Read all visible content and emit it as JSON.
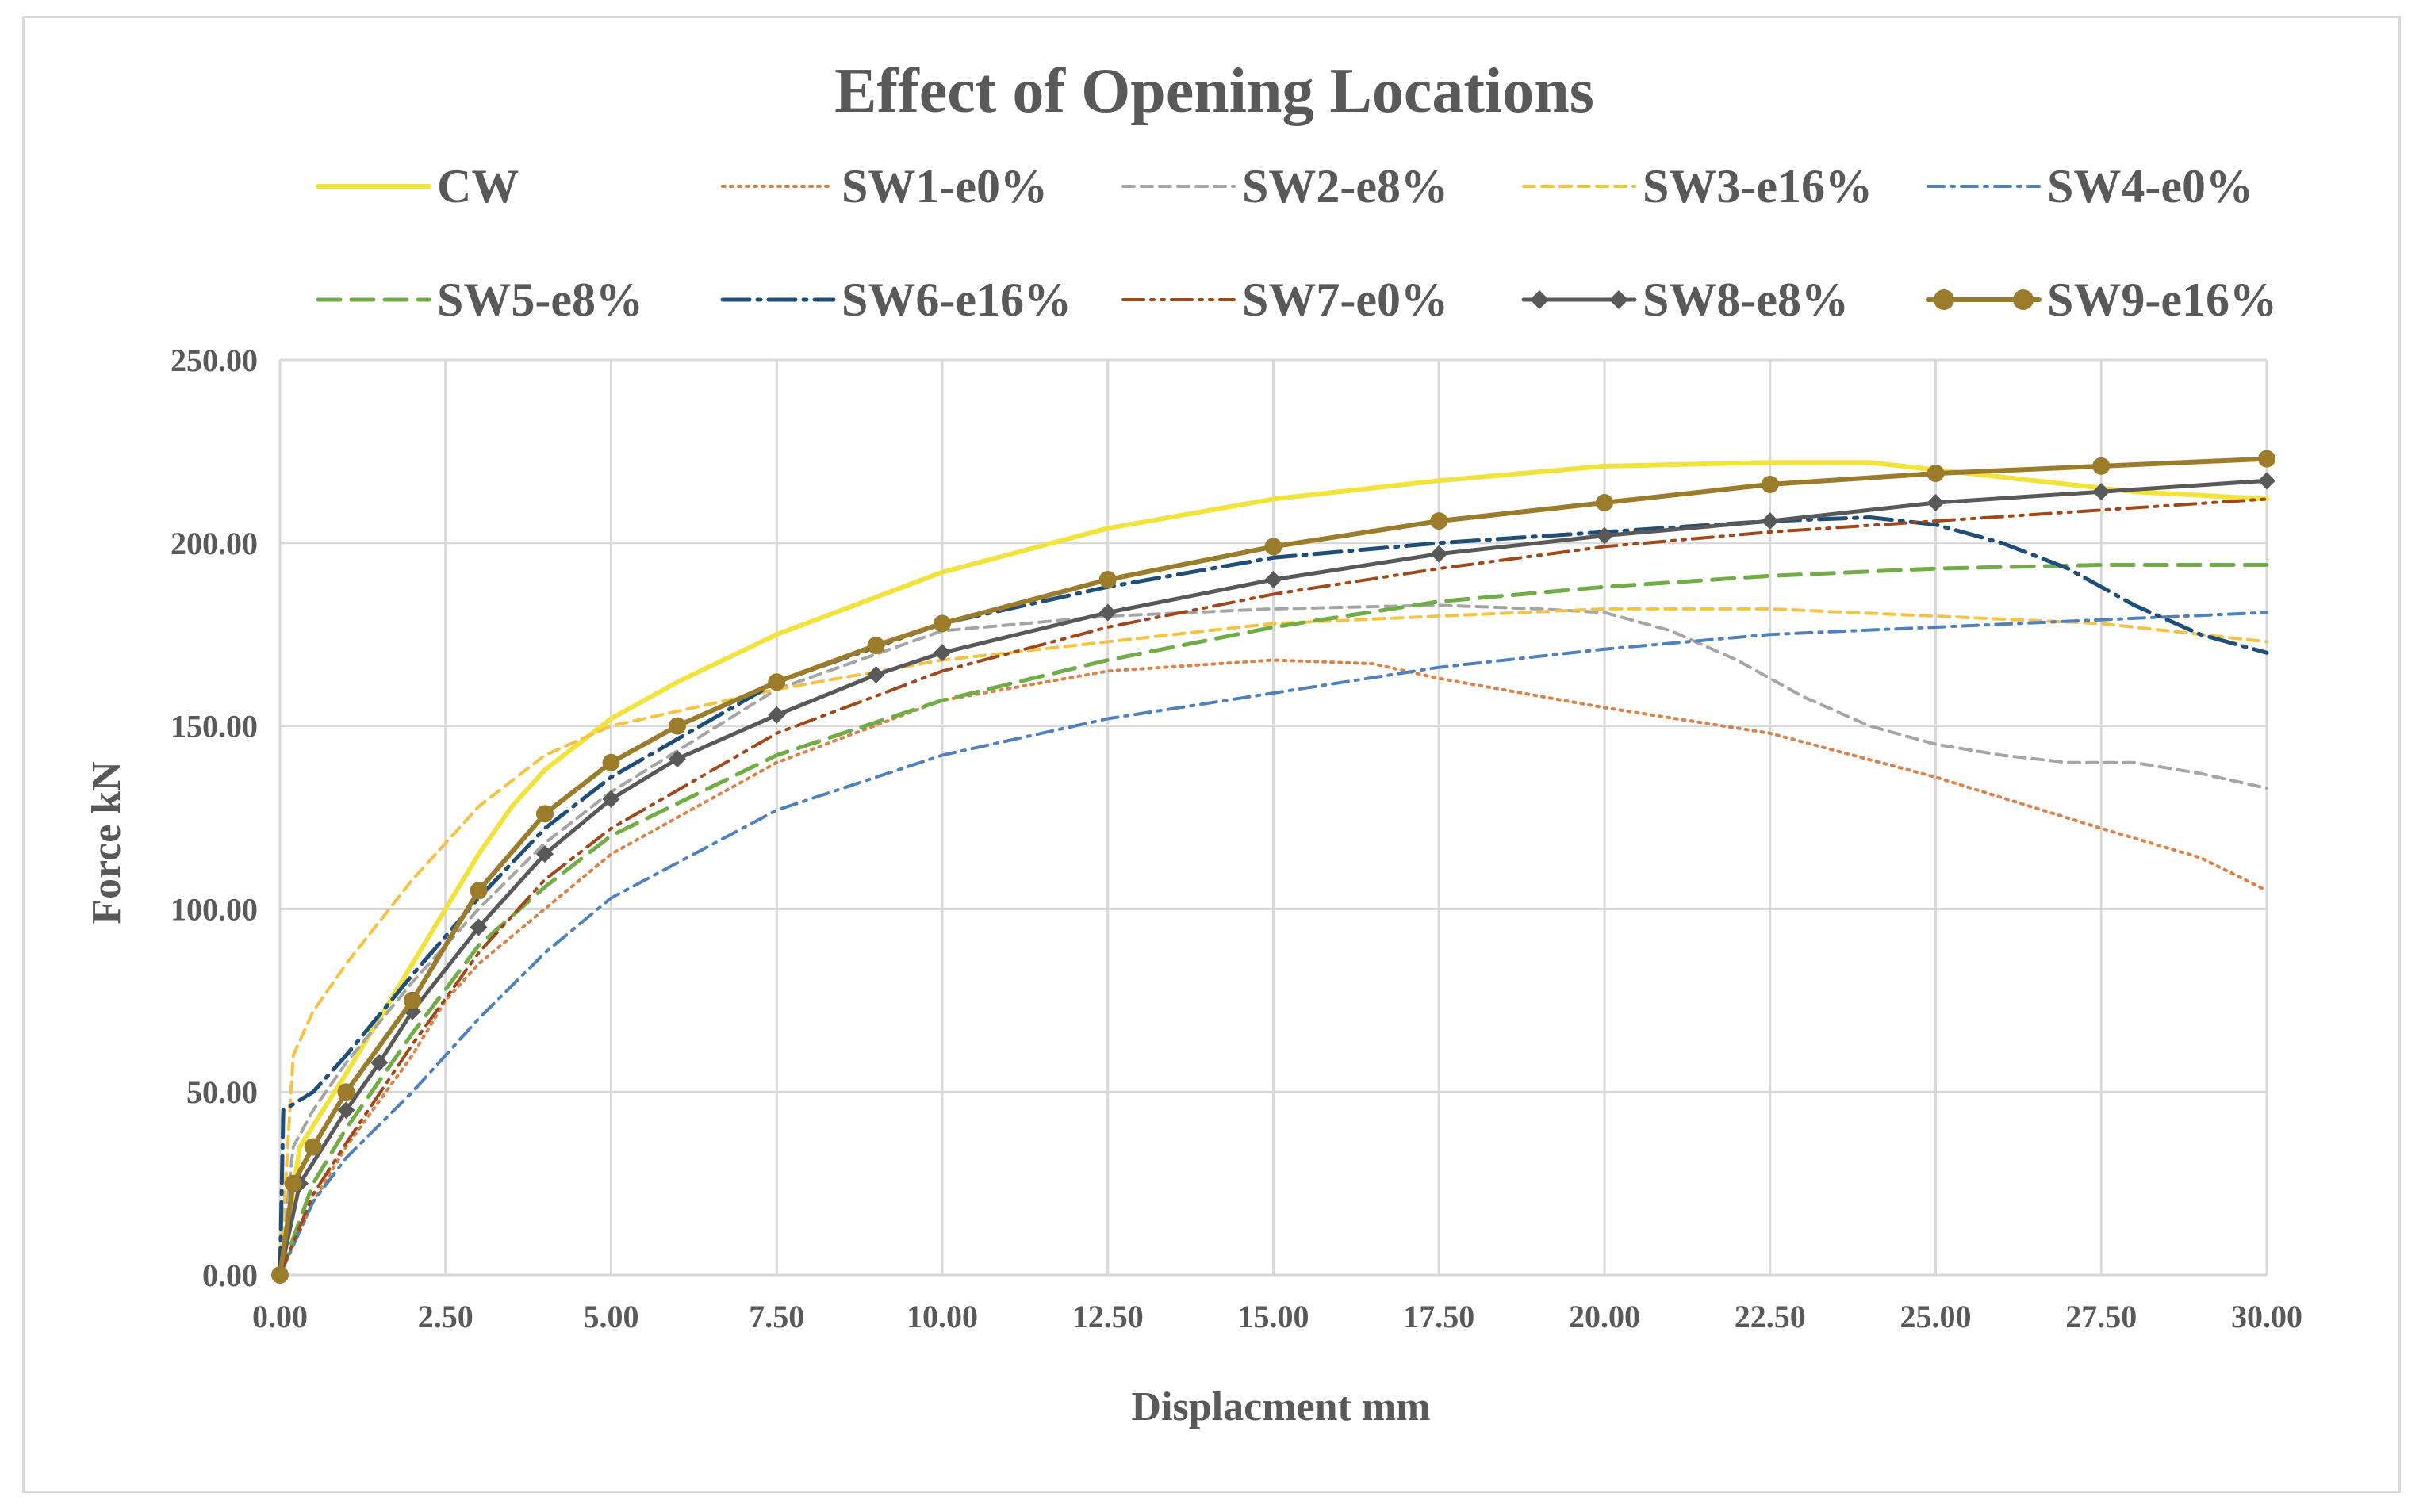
{
  "chart_data": {
    "type": "line",
    "title": "Effect of Opening Locations",
    "xlabel": "Displacment  mm",
    "ylabel": "Force  kN",
    "xlim": [
      0,
      30
    ],
    "ylim": [
      0,
      250
    ],
    "x_ticks": [
      "0.00",
      "2.50",
      "5.00",
      "7.50",
      "10.00",
      "12.50",
      "15.00",
      "17.50",
      "20.00",
      "22.50",
      "25.00",
      "27.50",
      "30.00"
    ],
    "y_ticks": [
      "0.00",
      "50.00",
      "100.00",
      "150.00",
      "200.00",
      "250.00"
    ],
    "grid": true,
    "legend_position": "top",
    "series": [
      {
        "name": "CW",
        "color": "#f2e33c",
        "style": "solid",
        "x": [
          0,
          0.3,
          1,
          1.5,
          2,
          2.5,
          3,
          3.5,
          4,
          5,
          6,
          7.5,
          10,
          12.5,
          15,
          17.5,
          20,
          22.5,
          24,
          25,
          26,
          27,
          28,
          29,
          30
        ],
        "y": [
          0,
          35,
          55,
          70,
          85,
          100,
          115,
          128,
          138,
          152,
          162,
          175,
          192,
          204,
          212,
          217,
          221,
          222,
          222,
          220,
          218,
          216,
          214,
          213,
          212
        ]
      },
      {
        "name": "SW1-e0%",
        "color": "#d9824a",
        "style": "dotted",
        "x": [
          0,
          0.5,
          1,
          2,
          2.5,
          3,
          4,
          5,
          7.5,
          10,
          12.5,
          15,
          16.5,
          17.5,
          20,
          22.5,
          25,
          27.5,
          29,
          30
        ],
        "y": [
          0,
          20,
          35,
          60,
          75,
          85,
          100,
          115,
          140,
          157,
          165,
          168,
          167,
          163,
          155,
          148,
          136,
          122,
          114,
          105
        ]
      },
      {
        "name": "SW2-e8%",
        "color": "#a5a5a5",
        "style": "dashed",
        "x": [
          0,
          0.2,
          0.5,
          1,
          2,
          3,
          4,
          5,
          7.5,
          10,
          12.5,
          15,
          17.5,
          19,
          20,
          21,
          22,
          23,
          24,
          25,
          26,
          27,
          28,
          29,
          30
        ],
        "y": [
          0,
          35,
          45,
          58,
          80,
          100,
          118,
          132,
          160,
          176,
          180,
          182,
          183,
          182,
          181,
          176,
          168,
          158,
          150,
          145,
          142,
          140,
          140,
          137,
          133
        ]
      },
      {
        "name": "SW3-e16%",
        "color": "#f6c244",
        "style": "dashed",
        "x": [
          0,
          0.2,
          0.5,
          1,
          2,
          3,
          4,
          5,
          6,
          7.5,
          10,
          12.5,
          15,
          17.5,
          20,
          22.5,
          25,
          27.5,
          29,
          30
        ],
        "y": [
          0,
          60,
          72,
          85,
          108,
          128,
          142,
          150,
          154,
          160,
          168,
          173,
          178,
          180,
          182,
          182,
          180,
          178,
          175,
          173
        ]
      },
      {
        "name": "SW4-e0%",
        "color": "#4f81bd",
        "style": "dashdot",
        "x": [
          0,
          0.5,
          1,
          2,
          3,
          4,
          5,
          7.5,
          10,
          12.5,
          15,
          17.5,
          20,
          22.5,
          25,
          27.5,
          30
        ],
        "y": [
          0,
          20,
          32,
          50,
          70,
          88,
          103,
          127,
          142,
          152,
          159,
          166,
          171,
          175,
          177,
          179,
          181
        ]
      },
      {
        "name": "SW5-e8%",
        "color": "#70ad47",
        "style": "longdash",
        "x": [
          0,
          0.5,
          1,
          2,
          3,
          4,
          5,
          7.5,
          10,
          12.5,
          15,
          17.5,
          20,
          22.5,
          25,
          27.5,
          30
        ],
        "y": [
          0,
          25,
          40,
          66,
          90,
          106,
          120,
          142,
          157,
          168,
          177,
          184,
          188,
          191,
          193,
          194,
          194
        ]
      },
      {
        "name": "SW6-e16%",
        "color": "#1f4e79",
        "style": "longdashdot",
        "x": [
          0,
          0.05,
          0.5,
          1,
          2,
          3,
          4,
          5,
          7.5,
          10,
          12.5,
          15,
          17.5,
          20,
          22.5,
          24,
          25,
          26,
          27,
          28,
          29,
          30
        ],
        "y": [
          0,
          45,
          50,
          60,
          82,
          103,
          122,
          136,
          162,
          178,
          188,
          196,
          200,
          203,
          206,
          207,
          205,
          200,
          193,
          183,
          175,
          170
        ]
      },
      {
        "name": "SW7-e0%",
        "color": "#a0481a",
        "style": "dashdotdot",
        "x": [
          0,
          0.5,
          1,
          2,
          3,
          4,
          5,
          7.5,
          10,
          12.5,
          15,
          17.5,
          20,
          22.5,
          25,
          27.5,
          30
        ],
        "y": [
          0,
          22,
          36,
          63,
          88,
          108,
          122,
          148,
          165,
          177,
          186,
          193,
          199,
          203,
          206,
          209,
          212
        ]
      },
      {
        "name": "SW8-e8%",
        "color": "#595959",
        "style": "diamond",
        "x": [
          0,
          0.3,
          1,
          1.5,
          2,
          3,
          4,
          5,
          6,
          7.5,
          9,
          10,
          12.5,
          15,
          17.5,
          20,
          22.5,
          25,
          27.5,
          30
        ],
        "y": [
          0,
          25,
          45,
          58,
          72,
          95,
          115,
          130,
          141,
          153,
          164,
          170,
          181,
          190,
          197,
          202,
          206,
          211,
          214,
          217
        ]
      },
      {
        "name": "SW9-e16%",
        "color": "#9b7c2a",
        "style": "circle",
        "x": [
          0,
          0.2,
          0.5,
          1,
          2,
          3,
          4,
          5,
          6,
          7.5,
          9,
          10,
          12.5,
          15,
          17.5,
          20,
          22.5,
          25,
          27.5,
          30
        ],
        "y": [
          0,
          25,
          35,
          50,
          75,
          105,
          126,
          140,
          150,
          162,
          172,
          178,
          190,
          199,
          206,
          211,
          216,
          219,
          221,
          223
        ]
      }
    ]
  }
}
